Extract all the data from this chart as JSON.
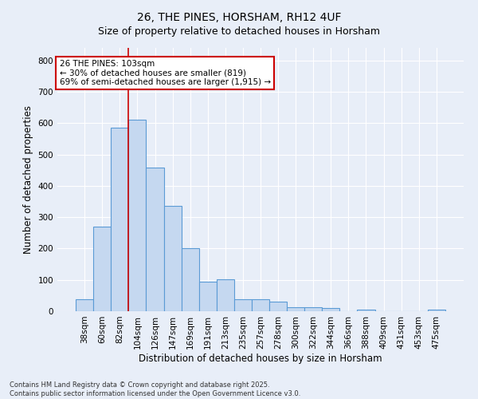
{
  "title1": "26, THE PINES, HORSHAM, RH12 4UF",
  "title2": "Size of property relative to detached houses in Horsham",
  "xlabel": "Distribution of detached houses by size in Horsham",
  "ylabel": "Number of detached properties",
  "categories": [
    "38sqm",
    "60sqm",
    "82sqm",
    "104sqm",
    "126sqm",
    "147sqm",
    "169sqm",
    "191sqm",
    "213sqm",
    "235sqm",
    "257sqm",
    "278sqm",
    "300sqm",
    "322sqm",
    "344sqm",
    "366sqm",
    "388sqm",
    "409sqm",
    "431sqm",
    "453sqm",
    "475sqm"
  ],
  "values": [
    37,
    270,
    585,
    610,
    458,
    337,
    202,
    93,
    102,
    37,
    37,
    30,
    14,
    14,
    10,
    0,
    5,
    0,
    0,
    0,
    5
  ],
  "bar_color": "#c5d8f0",
  "bar_edge_color": "#5b9bd5",
  "bar_linewidth": 0.8,
  "vline_x": 2.5,
  "vline_color": "#cc0000",
  "annotation_text": "26 THE PINES: 103sqm\n← 30% of detached houses are smaller (819)\n69% of semi-detached houses are larger (1,915) →",
  "annotation_box_color": "#ffffff",
  "annotation_box_edgecolor": "#cc0000",
  "annotation_fontsize": 7.5,
  "ylim": [
    0,
    840
  ],
  "yticks": [
    0,
    100,
    200,
    300,
    400,
    500,
    600,
    700,
    800
  ],
  "background_color": "#e8eef8",
  "grid_color": "#ffffff",
  "footer": "Contains HM Land Registry data © Crown copyright and database right 2025.\nContains public sector information licensed under the Open Government Licence v3.0.",
  "title_fontsize": 10,
  "subtitle_fontsize": 9,
  "axis_label_fontsize": 8.5,
  "tick_fontsize": 7.5,
  "footer_fontsize": 6
}
